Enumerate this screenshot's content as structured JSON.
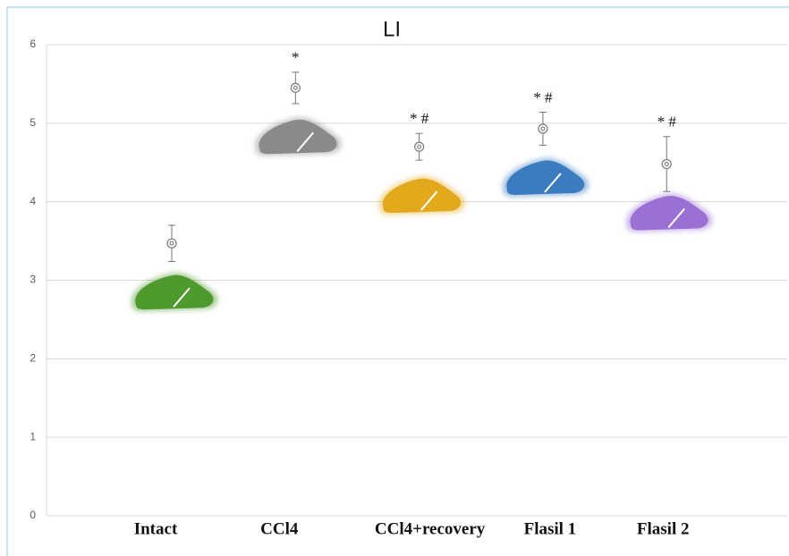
{
  "chart_data": {
    "type": "scatter",
    "title": "LI",
    "categories": [
      "Intact",
      "CCl4",
      "CCl4+recovery",
      "Flasil 1",
      "Flasil 2"
    ],
    "values": [
      3.47,
      5.45,
      4.7,
      4.93,
      4.48
    ],
    "errors": [
      0.23,
      0.2,
      0.17,
      0.21,
      0.35
    ],
    "annotations": [
      null,
      "*",
      "* #",
      "* #",
      "* #"
    ],
    "colors": [
      "#4e9a2c",
      "#8a8a8a",
      "#e3a91c",
      "#3b7cc0",
      "#9a70d4"
    ],
    "marker_color": "#808080",
    "ylim": [
      0,
      6
    ],
    "yticks": [
      0,
      1,
      2,
      3,
      4,
      5,
      6
    ],
    "grid": true
  }
}
